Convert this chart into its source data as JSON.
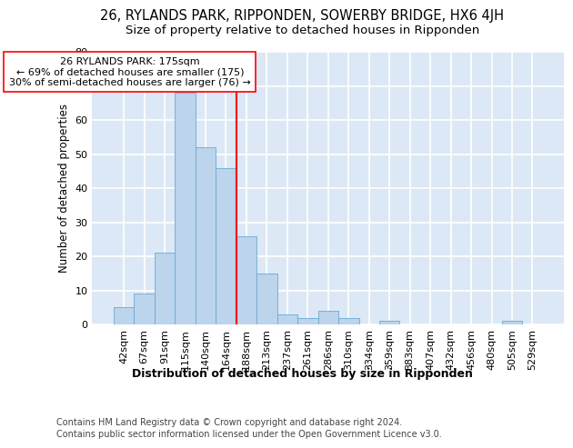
{
  "title": "26, RYLANDS PARK, RIPPONDEN, SOWERBY BRIDGE, HX6 4JH",
  "subtitle": "Size of property relative to detached houses in Ripponden",
  "xlabel": "Distribution of detached houses by size in Ripponden",
  "ylabel": "Number of detached properties",
  "footer_line1": "Contains HM Land Registry data © Crown copyright and database right 2024.",
  "footer_line2": "Contains public sector information licensed under the Open Government Licence v3.0.",
  "categories": [
    "42sqm",
    "67sqm",
    "91sqm",
    "115sqm",
    "140sqm",
    "164sqm",
    "188sqm",
    "213sqm",
    "237sqm",
    "261sqm",
    "286sqm",
    "310sqm",
    "334sqm",
    "359sqm",
    "383sqm",
    "407sqm",
    "432sqm",
    "456sqm",
    "480sqm",
    "505sqm",
    "529sqm"
  ],
  "values": [
    5,
    9,
    21,
    68,
    52,
    46,
    26,
    15,
    3,
    2,
    4,
    2,
    0,
    1,
    0,
    0,
    0,
    0,
    0,
    1,
    0
  ],
  "bar_color": "#bcd4ec",
  "bar_edge_color": "#6aaad4",
  "vline_x": 5.5,
  "vline_color": "red",
  "annotation_line1": "26 RYLANDS PARK: 175sqm",
  "annotation_line2": "← 69% of detached houses are smaller (175)",
  "annotation_line3": "30% of semi-detached houses are larger (76) →",
  "annotation_box_color": "white",
  "annotation_box_edge": "red",
  "ylim": [
    0,
    80
  ],
  "yticks": [
    0,
    10,
    20,
    30,
    40,
    50,
    60,
    70,
    80
  ],
  "plot_bg_color": "#dce8f5",
  "grid_color": "white",
  "title_fontsize": 10.5,
  "subtitle_fontsize": 9.5,
  "xlabel_fontsize": 9,
  "ylabel_fontsize": 8.5,
  "tick_fontsize": 8,
  "annot_fontsize": 8,
  "footer_fontsize": 7
}
